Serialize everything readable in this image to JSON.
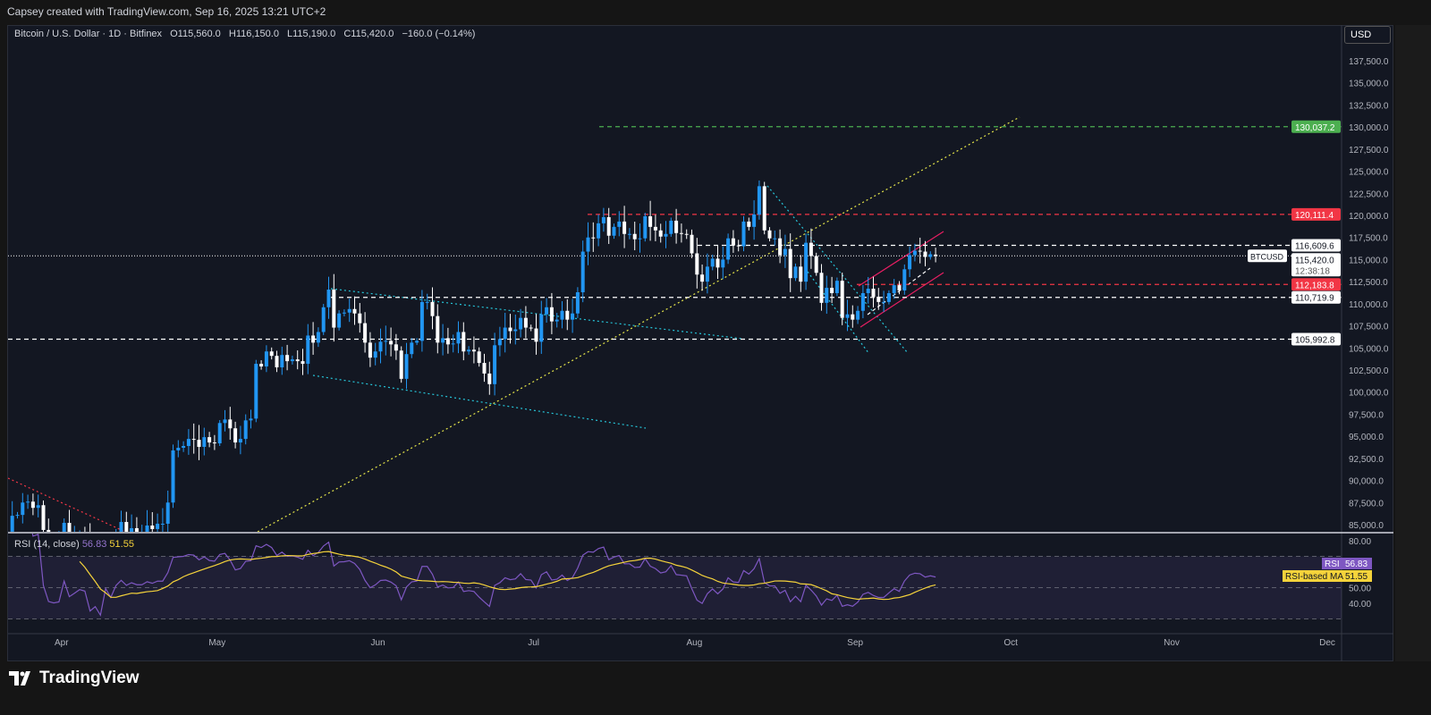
{
  "credit": "Capsey created with TradingView.com, Sep 16, 2025 13:21 UTC+2",
  "legend": {
    "symbol": "Bitcoin / U.S. Dollar · 1D · Bitfinex",
    "open": "O115,560.0",
    "high": "H116,150.0",
    "low": "L115,190.0",
    "close": "C115,420.0",
    "change": "−160.0 (−0.14%)"
  },
  "currency": "USD",
  "rsi": {
    "title": "RSI (14, close)",
    "value": "56.83",
    "ma": "51.55",
    "rsi_label": "RSI",
    "ma_label": "RSI-based MA",
    "ticks": [
      "80.00",
      "50.00",
      "40.00"
    ]
  },
  "footer": {
    "brand": "TradingView"
  },
  "colors": {
    "up": "#2196f3",
    "down": "#ffffff",
    "bg": "#131722",
    "red": "#f23645",
    "green": "#4caf50",
    "rsi": "#7e57c2",
    "ma": "#f5d33b",
    "trend_yellow": "#e8e84a",
    "trend_cyan": "#26c6da",
    "channel": "#e91e63"
  },
  "chart_data": {
    "type": "candlestick",
    "symbol": "BTCUSD",
    "start_date": "2025-03-21",
    "interval": "1D",
    "closes_k": [
      84.2,
      86.0,
      86.1,
      87.5,
      87.6,
      86.9,
      87.2,
      84.4,
      82.6,
      82.4,
      82.5,
      85.2,
      82.5,
      83.1,
      83.8,
      83.5,
      78.4,
      79.2,
      76.3,
      82.6,
      79.6,
      83.4,
      85.3,
      83.7,
      84.6,
      84.0,
      84.0,
      84.9,
      84.5,
      85.1,
      85.1,
      87.5,
      93.4,
      93.7,
      93.9,
      94.7,
      94.6,
      93.8,
      94.9,
      94.3,
      94.2,
      96.5,
      96.9,
      95.9,
      94.3,
      94.7,
      96.8,
      97.0,
      103.2,
      102.9,
      104.6,
      104.1,
      102.8,
      104.2,
      103.5,
      103.7,
      103.5,
      103.2,
      106.4,
      105.6,
      106.8,
      109.6,
      111.6,
      107.3,
      108.9,
      109.0,
      109.4,
      108.9,
      107.8,
      105.6,
      103.9,
      104.6,
      105.7,
      105.8,
      105.4,
      104.7,
      101.5,
      104.3,
      105.6,
      105.8,
      110.2,
      110.2,
      108.6,
      105.6,
      106.1,
      105.4,
      105.5,
      106.8,
      104.6,
      104.8,
      104.6,
      103.3,
      102.1,
      100.9,
      105.3,
      106.0,
      107.3,
      106.9,
      107.1,
      108.4,
      107.3,
      107.2,
      105.7,
      108.8,
      109.6,
      108.0,
      108.2,
      109.2,
      108.2,
      108.9,
      111.3,
      115.9,
      117.5,
      117.4,
      119.1,
      119.8,
      117.7,
      118.7,
      119.3,
      117.9,
      117.9,
      117.3,
      117.4,
      119.9,
      118.7,
      118.3,
      117.6,
      117.9,
      119.4,
      118.0,
      117.9,
      117.8,
      115.7,
      113.3,
      112.5,
      114.2,
      115.1,
      114.1,
      115.0,
      117.4,
      116.6,
      116.5,
      119.3,
      118.7,
      120.1,
      123.3,
      118.3,
      117.4,
      117.4,
      115.5,
      116.2,
      112.9,
      114.2,
      112.5,
      116.9,
      115.4,
      113.5,
      110.1,
      111.8,
      111.2,
      112.6,
      108.4,
      108.8,
      108.2,
      109.2,
      111.2,
      111.7,
      110.8,
      110.2,
      110.2,
      111.2,
      112.1,
      111.5,
      113.9,
      115.5,
      116.0,
      115.9,
      115.3,
      115.6,
      115.4
    ],
    "last": {
      "open": 115560.0,
      "high": 116150.0,
      "low": 115190.0,
      "close": 115420.0
    },
    "price_ticks": [
      "85,000.0",
      "87,500.0",
      "90,000.0",
      "92,500.0",
      "95,000.0",
      "97,500.0",
      "100,000.0",
      "102,500.0",
      "105,000.0",
      "107,500.0",
      "110,000.0",
      "112,500.0",
      "115,000.0",
      "117,500.0",
      "120,000.0",
      "122,500.0",
      "125,000.0",
      "127,500.0",
      "130,000.0",
      "132,500.0",
      "135,000.0",
      "137,500.0"
    ],
    "x_ticks": [
      "Apr",
      "May",
      "Jun",
      "Jul",
      "Aug",
      "Sep",
      "Oct",
      "Nov",
      "Dec"
    ],
    "levels": [
      {
        "label": "130,037.2",
        "price": 130037.2,
        "color": "#4caf50",
        "style": "dashed"
      },
      {
        "label": "120,111.4",
        "price": 120111.4,
        "color": "#f23645",
        "style": "dashed"
      },
      {
        "label": "116,609.6",
        "price": 116609.6,
        "color": "#ffffff",
        "style": "dashed"
      },
      {
        "label": "112,183.8",
        "price": 112183.8,
        "color": "#f23645",
        "style": "dashed"
      },
      {
        "label": "110,719.9",
        "price": 110719.9,
        "color": "#ffffff",
        "style": "dashed"
      },
      {
        "label": "105,992.8",
        "price": 105992.8,
        "color": "#ffffff",
        "style": "dashed"
      }
    ],
    "current": {
      "label": "115,420.0",
      "countdown": "12:38:18",
      "tag": "BTCUSD",
      "price": 115420.0
    },
    "rsi_ylim": [
      20,
      90
    ],
    "rsi_bands": [
      70,
      50,
      30
    ]
  }
}
